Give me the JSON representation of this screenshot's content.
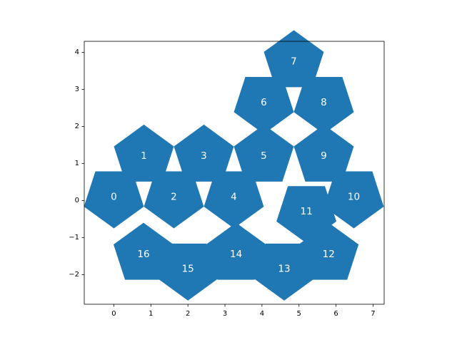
{
  "chart_data": {
    "type": "pentagon_tiling",
    "color": "#1f77b4",
    "label_color": "#ffffff",
    "xlim": [
      -0.8,
      7.3
    ],
    "ylim": [
      -2.8,
      4.3
    ],
    "x_ticks": [
      0,
      1,
      2,
      3,
      4,
      5,
      6,
      7
    ],
    "y_ticks": [
      -2,
      -1,
      0,
      1,
      2,
      3,
      4
    ],
    "x_tick_labels": [
      "0",
      "1",
      "2",
      "3",
      "4",
      "5",
      "6",
      "7"
    ],
    "y_tick_labels": [
      "−2",
      "−1",
      "0",
      "1",
      "2",
      "3",
      "4"
    ],
    "grid": false,
    "pentagons": [
      {
        "label": "0",
        "cx": 0.0,
        "cy": 0.1,
        "rotation": 180
      },
      {
        "label": "1",
        "cx": 0.81,
        "cy": 1.2,
        "rotation": 0
      },
      {
        "label": "2",
        "cx": 1.62,
        "cy": 0.1,
        "rotation": 180
      },
      {
        "label": "3",
        "cx": 2.43,
        "cy": 1.2,
        "rotation": 0
      },
      {
        "label": "4",
        "cx": 3.24,
        "cy": 0.1,
        "rotation": 180
      },
      {
        "label": "5",
        "cx": 4.05,
        "cy": 1.2,
        "rotation": 0
      },
      {
        "label": "6",
        "cx": 4.05,
        "cy": 2.65,
        "rotation": 180
      },
      {
        "label": "7",
        "cx": 4.86,
        "cy": 3.75,
        "rotation": 0
      },
      {
        "label": "8",
        "cx": 5.67,
        "cy": 2.65,
        "rotation": 180
      },
      {
        "label": "9",
        "cx": 5.67,
        "cy": 1.2,
        "rotation": 0
      },
      {
        "label": "10",
        "cx": 6.48,
        "cy": 0.1,
        "rotation": 180
      },
      {
        "label": "11",
        "cx": 5.2,
        "cy": -0.3,
        "rotation": 180
      },
      {
        "label": "12",
        "cx": 5.8,
        "cy": -1.45,
        "rotation": 0
      },
      {
        "label": "13",
        "cx": 4.6,
        "cy": -1.85,
        "rotation": 180
      },
      {
        "label": "14",
        "cx": 3.3,
        "cy": -1.45,
        "rotation": 0
      },
      {
        "label": "15",
        "cx": 2.0,
        "cy": -1.85,
        "rotation": 180
      },
      {
        "label": "16",
        "cx": 0.8,
        "cy": -1.45,
        "rotation": 0
      }
    ]
  }
}
